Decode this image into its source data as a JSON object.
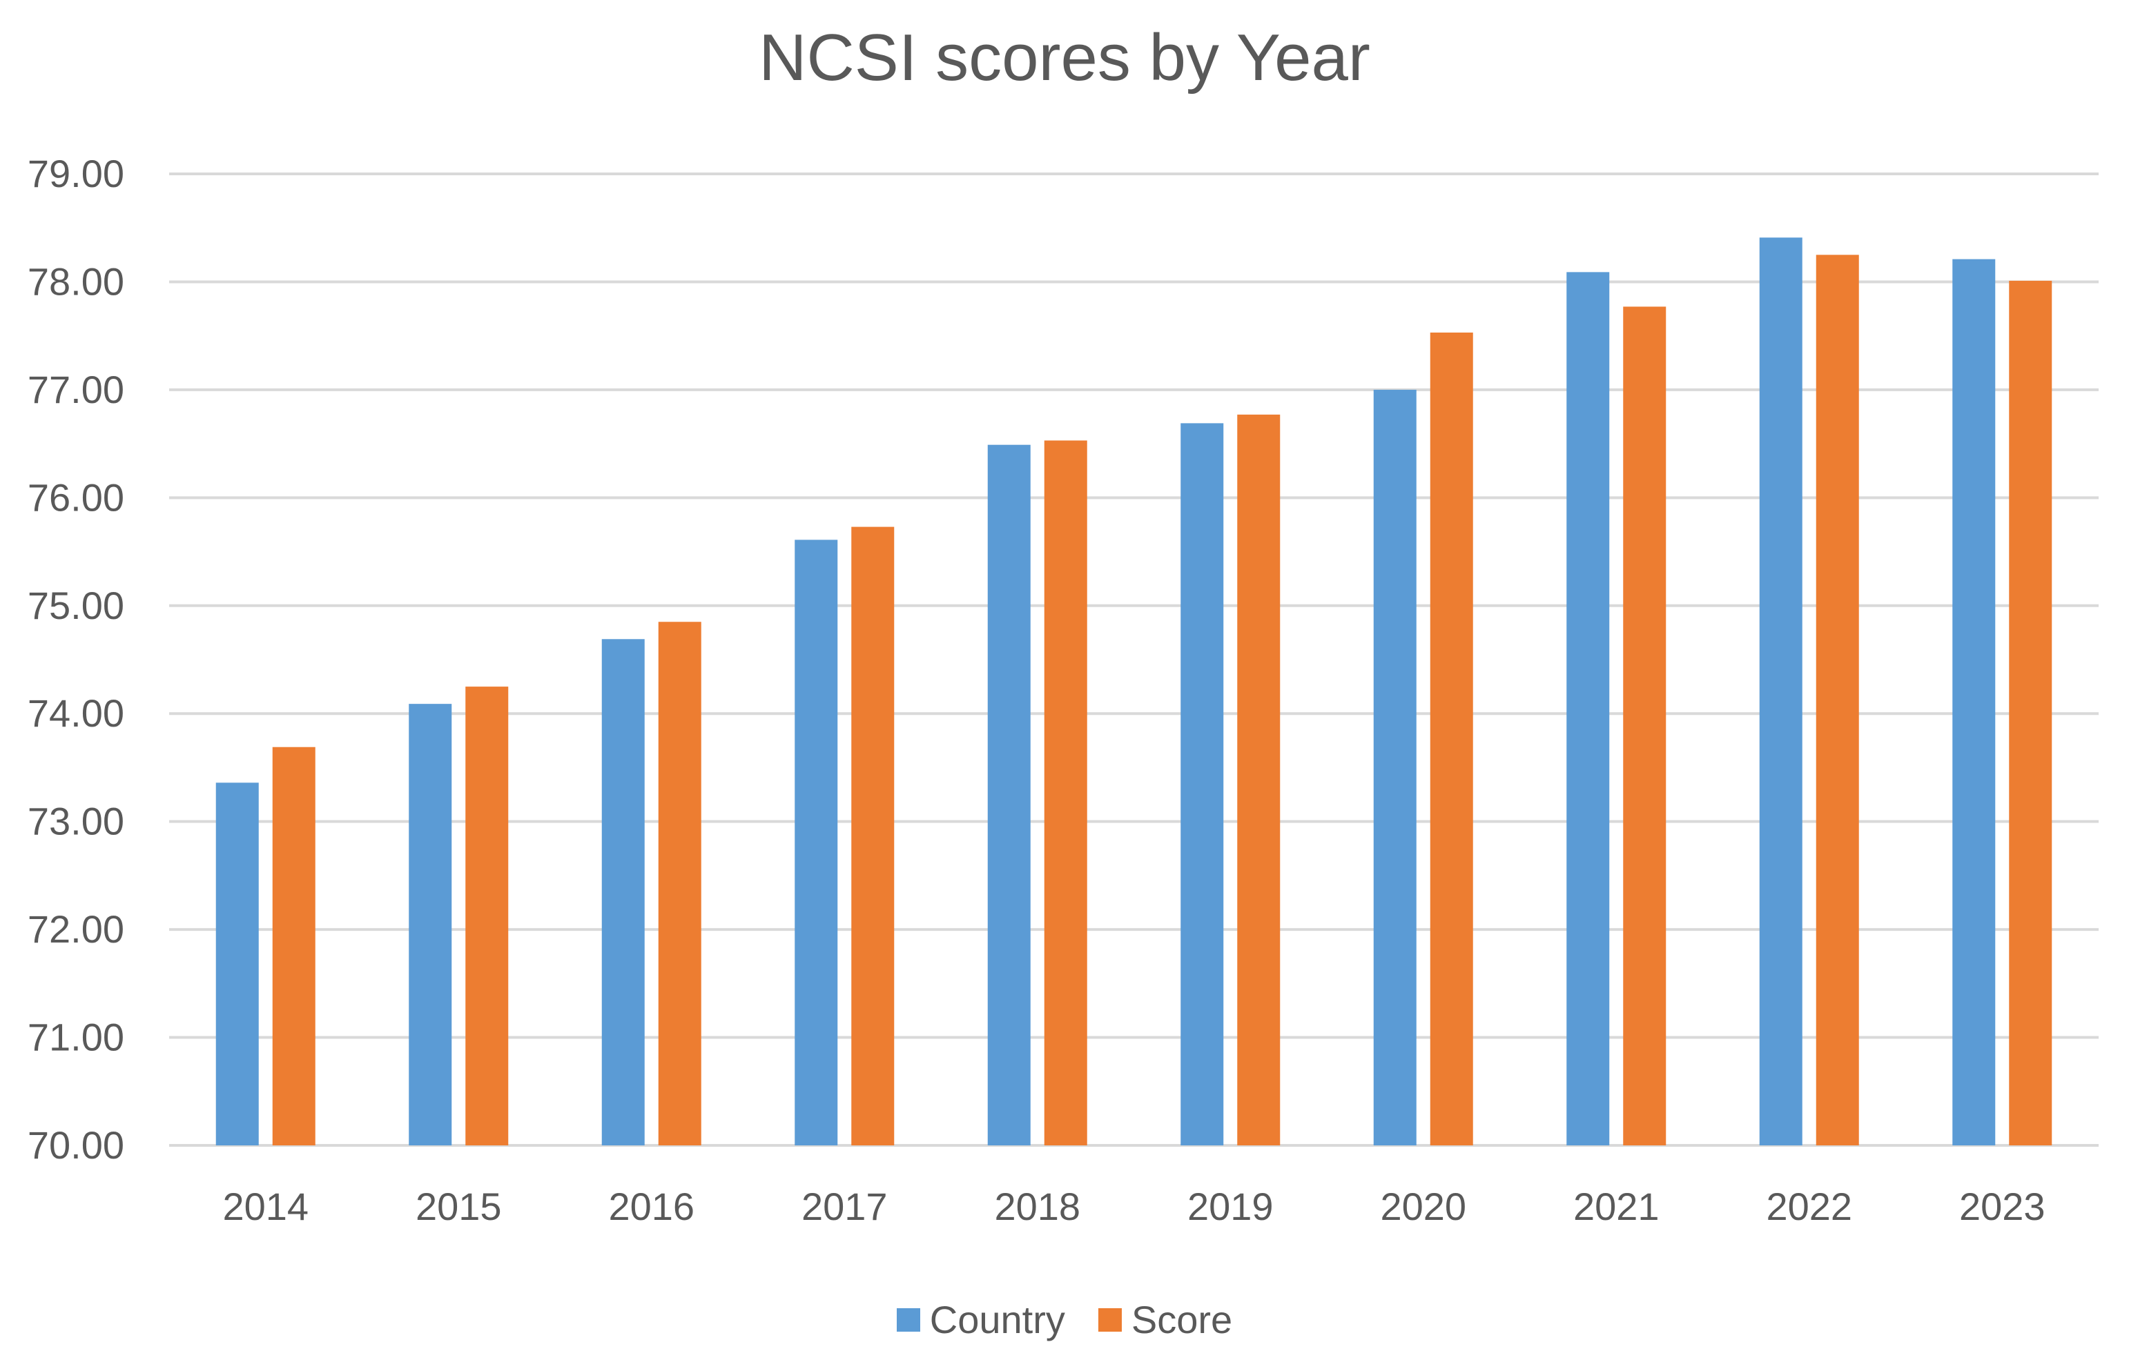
{
  "chart_data": {
    "type": "bar",
    "title": "NCSI scores by Year",
    "xlabel": "",
    "ylabel": "",
    "categories": [
      "2014",
      "2015",
      "2016",
      "2017",
      "2018",
      "2019",
      "2020",
      "2021",
      "2022",
      "2023"
    ],
    "series": [
      {
        "name": "Country",
        "color": "#5B9BD5",
        "values": [
          73.36,
          74.09,
          74.69,
          75.61,
          76.49,
          76.69,
          77.0,
          78.09,
          78.41,
          78.21
        ]
      },
      {
        "name": "Score",
        "color": "#ED7D31",
        "values": [
          73.69,
          74.25,
          74.85,
          75.73,
          76.53,
          76.77,
          77.53,
          77.77,
          78.25,
          78.01
        ]
      }
    ],
    "ylim": [
      70,
      79
    ],
    "yticks": [
      "70.00",
      "71.00",
      "72.00",
      "73.00",
      "74.00",
      "75.00",
      "76.00",
      "77.00",
      "78.00",
      "79.00"
    ],
    "grid": true,
    "legend_position": "bottom"
  }
}
